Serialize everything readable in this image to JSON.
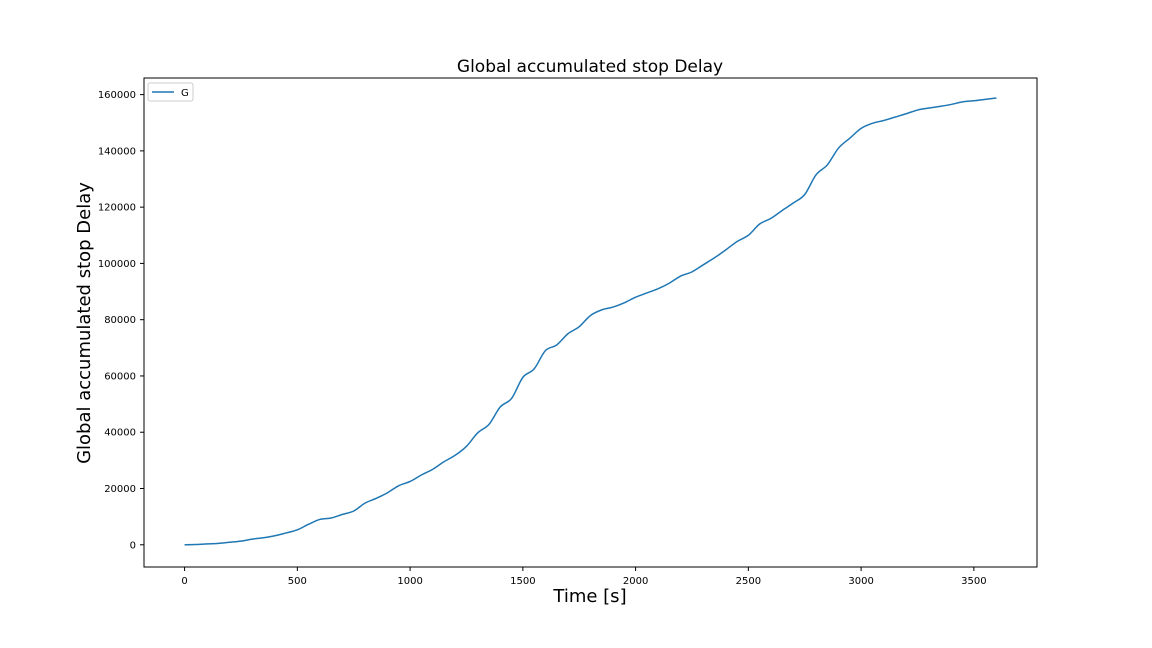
{
  "chart_data": {
    "type": "line",
    "title": "Global accumulated stop Delay",
    "xlabel": "Time [s]",
    "ylabel": "Global accumulated stop Delay",
    "xlim": [
      -180,
      3780
    ],
    "ylim": [
      -7900,
      165900
    ],
    "xticks": [
      0,
      500,
      1000,
      1500,
      2000,
      2500,
      3000,
      3500
    ],
    "yticks": [
      0,
      20000,
      40000,
      60000,
      80000,
      100000,
      120000,
      140000,
      160000
    ],
    "grid": false,
    "legend_position": "top-left",
    "series": [
      {
        "name": "G",
        "color": "#1f77b4",
        "x": [
          0,
          50,
          100,
          150,
          200,
          250,
          300,
          350,
          400,
          450,
          500,
          550,
          600,
          650,
          700,
          750,
          800,
          850,
          900,
          950,
          1000,
          1050,
          1100,
          1150,
          1200,
          1250,
          1300,
          1350,
          1400,
          1450,
          1500,
          1550,
          1600,
          1650,
          1700,
          1750,
          1800,
          1850,
          1900,
          1950,
          2000,
          2050,
          2100,
          2150,
          2200,
          2250,
          2300,
          2350,
          2400,
          2450,
          2500,
          2550,
          2600,
          2650,
          2700,
          2750,
          2800,
          2850,
          2900,
          2950,
          3000,
          3050,
          3100,
          3150,
          3200,
          3250,
          3300,
          3350,
          3400,
          3450,
          3500,
          3550,
          3600
        ],
        "values": [
          0,
          100,
          300,
          500,
          900,
          1300,
          2000,
          2500,
          3200,
          4200,
          5300,
          7300,
          9000,
          9500,
          10800,
          12000,
          14800,
          16500,
          18500,
          21000,
          22500,
          24800,
          26800,
          29500,
          31800,
          35000,
          39800,
          42800,
          49000,
          52000,
          59500,
          62500,
          69000,
          71000,
          75000,
          77500,
          81500,
          83500,
          84500,
          86000,
          88000,
          89500,
          91000,
          93000,
          95500,
          97000,
          99500,
          102000,
          104800,
          107800,
          110000,
          114000,
          116000,
          118800,
          121500,
          124500,
          131500,
          135000,
          141000,
          144500,
          148000,
          149800,
          150800,
          152000,
          153200,
          154500,
          155200,
          155800,
          156500,
          157400,
          157800,
          158300,
          158800
        ]
      }
    ]
  }
}
